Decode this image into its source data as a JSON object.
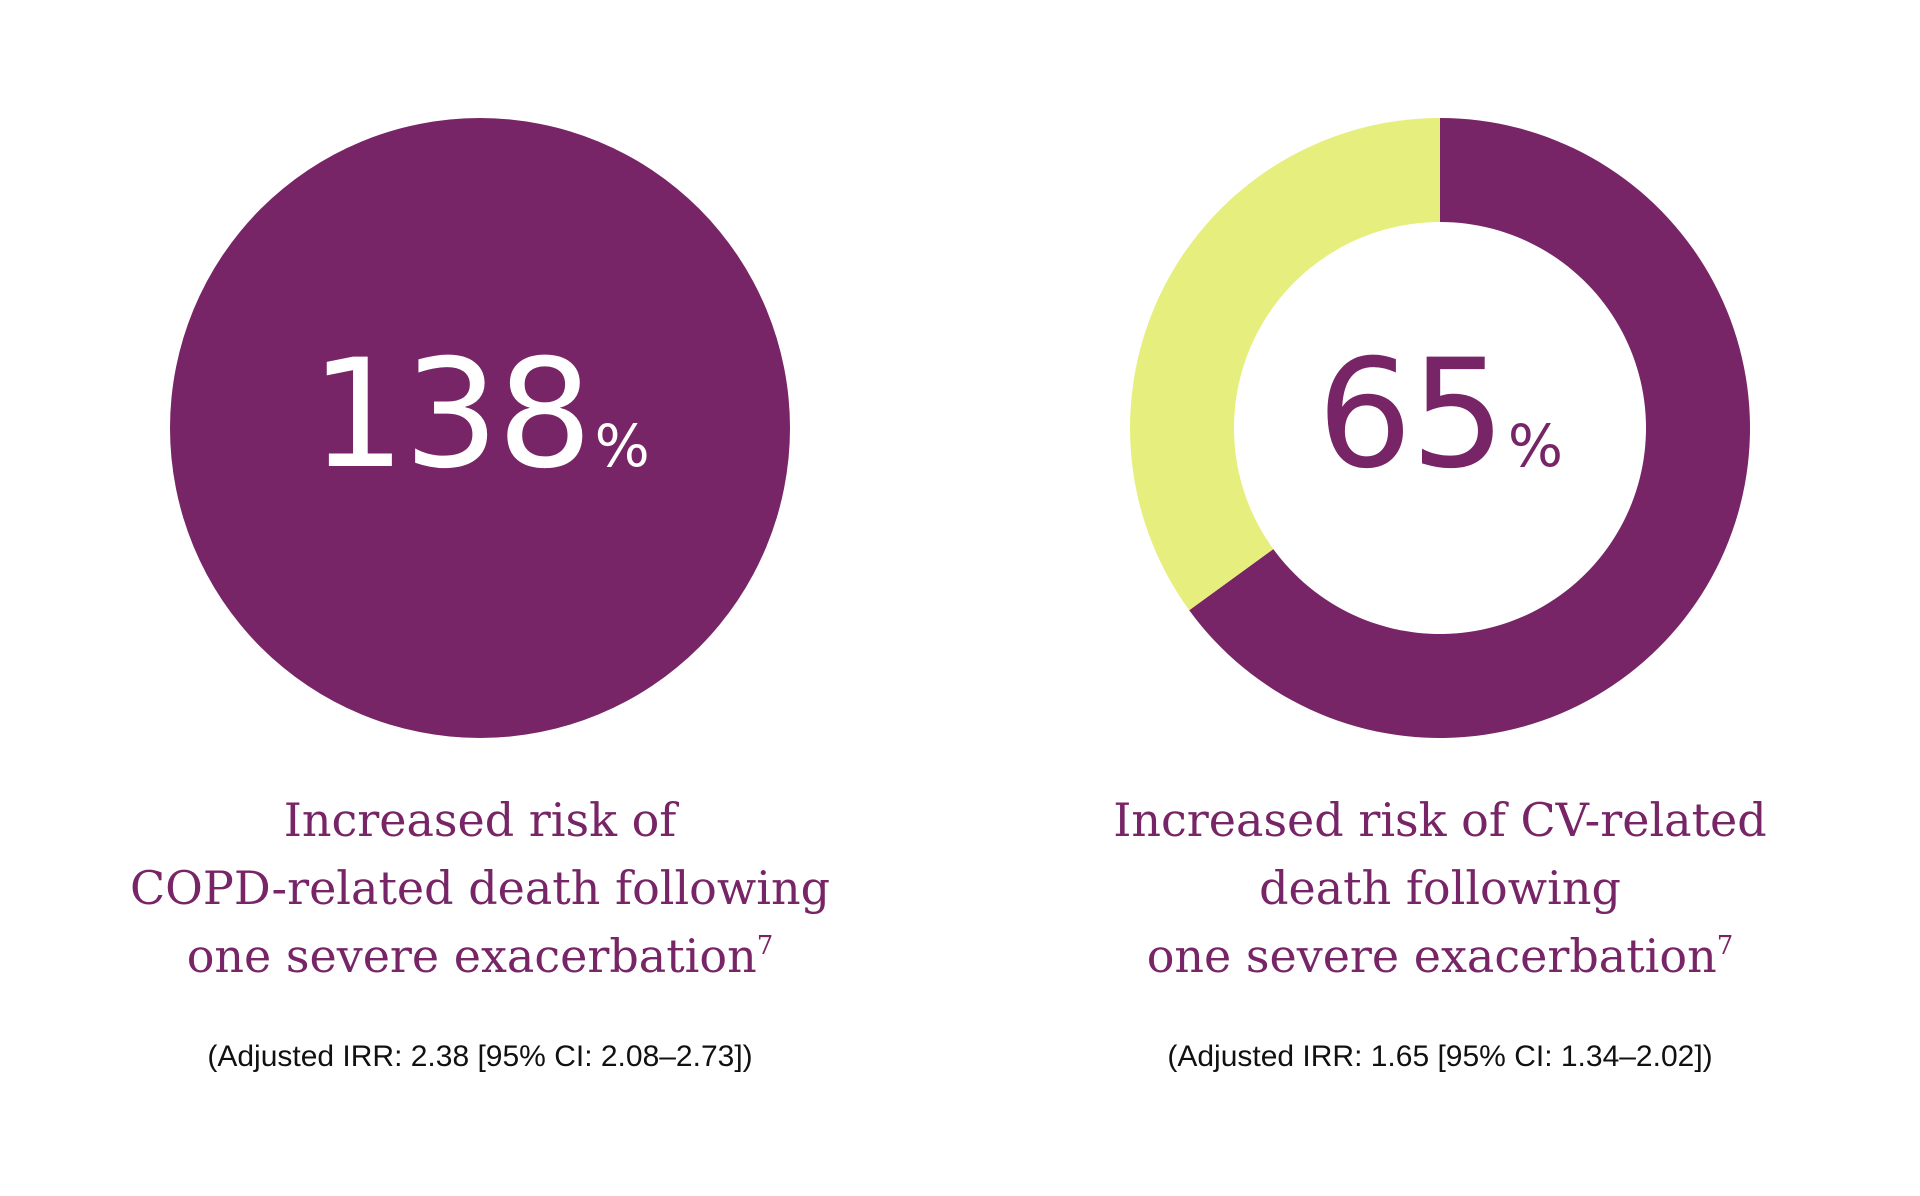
{
  "colors": {
    "primary": "#772566",
    "accent": "#e6ef7d",
    "background": "#ffffff",
    "text": "#111111"
  },
  "chart_data": [
    {
      "type": "pie",
      "style": "filled-circle",
      "value_label": "138",
      "value_suffix": "%",
      "value": 138,
      "caption_lines": [
        "Increased risk of",
        "COPD-related death following",
        "one severe exacerbation"
      ],
      "caption_reference": "7",
      "stat_text": "(Adjusted IRR: 2.38 [95% CI: 2.08–2.73])",
      "slices": [
        {
          "value": 100,
          "color": "#772566"
        }
      ]
    },
    {
      "type": "pie",
      "style": "donut",
      "value_label": "65",
      "value_suffix": "%",
      "value": 65,
      "caption_lines": [
        "Increased risk of CV-related",
        "death following",
        "one severe exacerbation"
      ],
      "caption_reference": "7",
      "stat_text": "(Adjusted IRR: 1.65 [95% CI: 1.34–2.02])",
      "slices": [
        {
          "value": 65,
          "color": "#772566"
        },
        {
          "value": 35,
          "color": "#e6ef7d"
        }
      ]
    }
  ]
}
